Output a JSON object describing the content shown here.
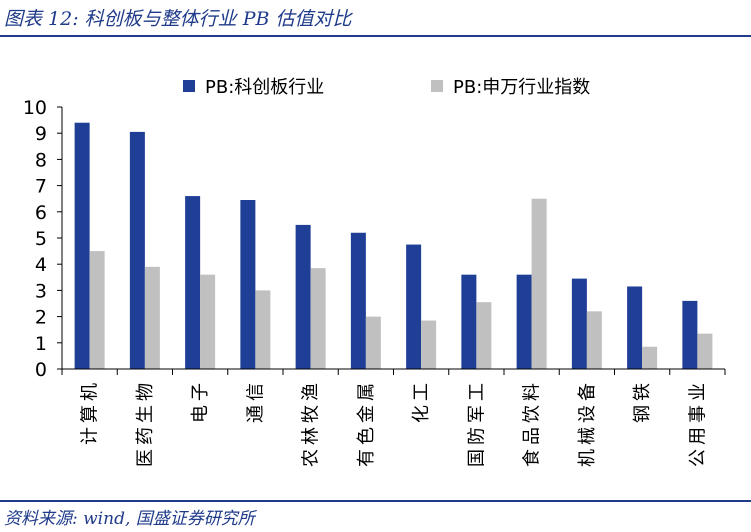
{
  "header": {
    "title": "图表 12:  科创板与整体行业 PB 估值对比"
  },
  "footer": {
    "source": "资料来源:  wind,  国盛证券研究所"
  },
  "colors": {
    "series1": "#1f3f97",
    "series2": "#c0c0c0",
    "accent": "#1f3b8a"
  },
  "chart_data": {
    "type": "bar",
    "title": "",
    "xlabel": "",
    "ylabel": "",
    "ylim": [
      0,
      10
    ],
    "yticks": [
      0,
      1,
      2,
      3,
      4,
      5,
      6,
      7,
      8,
      9,
      10
    ],
    "legend_position": "top",
    "categories": [
      "计算机",
      "医药生物",
      "电子",
      "通信",
      "农林牧渔",
      "有色金属",
      "化工",
      "国防军工",
      "食品饮料",
      "机械设备",
      "钢铁",
      "公用事业"
    ],
    "series": [
      {
        "name": "PB:科创板行业",
        "values": [
          9.4,
          9.05,
          6.6,
          6.45,
          5.5,
          5.2,
          4.75,
          3.6,
          3.6,
          3.45,
          3.15,
          2.6
        ]
      },
      {
        "name": "PB:申万行业指数",
        "values": [
          4.5,
          3.9,
          3.6,
          3.0,
          3.85,
          2.0,
          1.85,
          2.55,
          6.5,
          2.2,
          0.85,
          1.35
        ]
      }
    ]
  }
}
